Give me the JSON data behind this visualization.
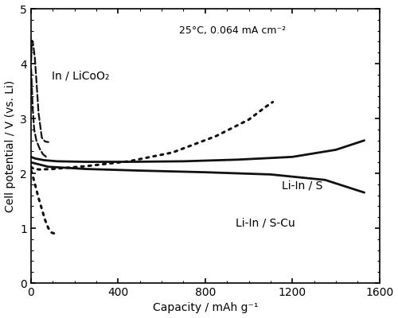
{
  "title_annotation": "25°C, 0.064 mA cm⁻²",
  "xlabel": "Capacity / mAh g⁻¹",
  "ylabel": "Cell potential / V (vs. Li)",
  "xlim": [
    0,
    1600
  ],
  "ylim": [
    0,
    5
  ],
  "xticks": [
    0,
    400,
    800,
    1200,
    1600
  ],
  "yticks": [
    0,
    1,
    2,
    3,
    4,
    5
  ],
  "label_LiCoO2": "In / LiCoO₂",
  "label_LiInS": "Li-In / S",
  "label_LiInSCu": "Li-In / S-Cu",
  "curve_LiCoO2_charge": {
    "x": [
      1,
      3,
      5,
      8,
      12,
      18,
      25,
      35,
      50,
      65,
      80
    ],
    "y": [
      4.05,
      4.32,
      4.42,
      4.4,
      4.3,
      4.1,
      3.7,
      3.1,
      2.65,
      2.58,
      2.57
    ],
    "style": "dashed",
    "color": "#111111",
    "lw": 1.6
  },
  "curve_LiCoO2_discharge": {
    "x": [
      1,
      4,
      8,
      15,
      25,
      40,
      55,
      70,
      80
    ],
    "y": [
      3.9,
      3.6,
      3.2,
      2.8,
      2.6,
      2.45,
      2.35,
      2.3,
      2.28
    ],
    "style": "dashed",
    "color": "#111111",
    "lw": 1.6
  },
  "curve_LiInS_charge": {
    "x": [
      0,
      20,
      60,
      120,
      250,
      450,
      700,
      950,
      1200,
      1400,
      1530
    ],
    "y": [
      2.3,
      2.27,
      2.24,
      2.22,
      2.21,
      2.21,
      2.22,
      2.25,
      2.3,
      2.43,
      2.6
    ],
    "style": "solid",
    "color": "#111111",
    "lw": 2.0
  },
  "curve_LiInS_discharge": {
    "x": [
      0,
      80,
      250,
      500,
      800,
      1100,
      1350,
      1530
    ],
    "y": [
      2.2,
      2.12,
      2.08,
      2.05,
      2.02,
      1.98,
      1.88,
      1.65
    ],
    "style": "solid",
    "color": "#111111",
    "lw": 2.0
  },
  "curve_LiInSCu_charge": {
    "x": [
      1,
      5,
      15,
      40,
      100,
      250,
      450,
      650,
      850,
      1000,
      1080,
      1110
    ],
    "y": [
      2.12,
      2.1,
      2.08,
      2.07,
      2.08,
      2.13,
      2.22,
      2.38,
      2.68,
      2.98,
      3.22,
      3.3
    ],
    "style": "dotted",
    "color": "#111111",
    "lw": 2.2
  },
  "curve_LiInSCu_discharge": {
    "x": [
      1,
      5,
      12,
      22,
      35,
      50,
      65,
      80,
      95,
      110
    ],
    "y": [
      2.05,
      2.0,
      1.9,
      1.75,
      1.55,
      1.35,
      1.15,
      1.0,
      0.92,
      0.9
    ],
    "style": "dotted",
    "color": "#111111",
    "lw": 2.2
  },
  "figsize": [
    5.0,
    4.0
  ],
  "dpi": 100
}
